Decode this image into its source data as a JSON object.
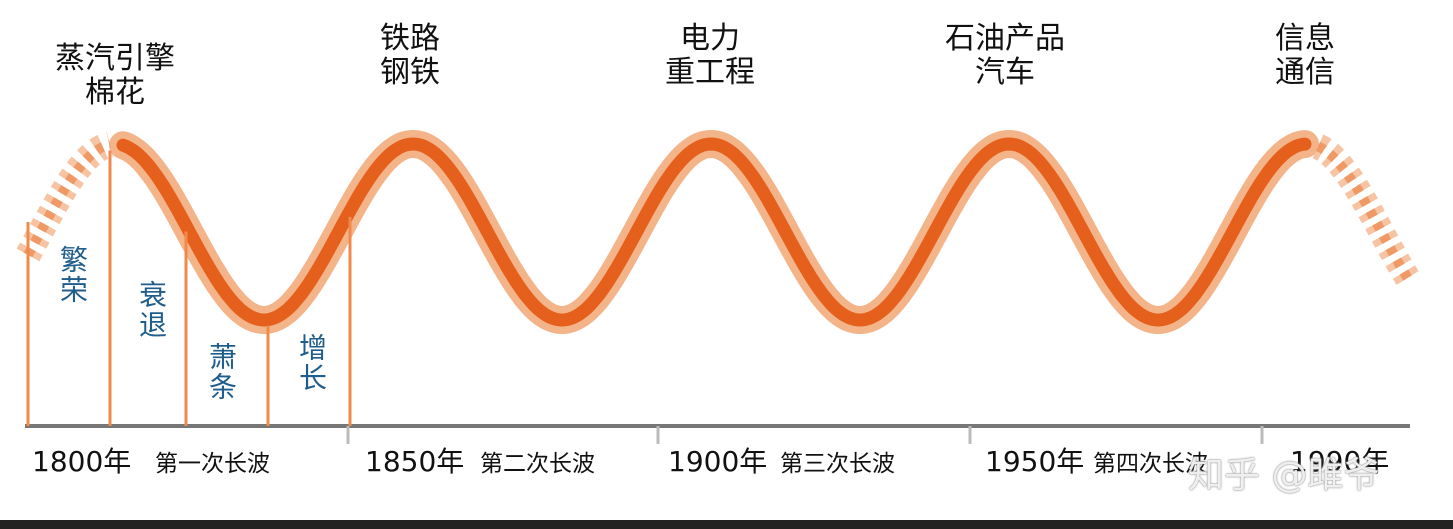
{
  "eras": [
    {
      "lines": [
        "蒸汽引擎",
        "棉花"
      ]
    },
    {
      "lines": [
        "铁路",
        "钢铁"
      ]
    },
    {
      "lines": [
        "电力",
        "重工程"
      ]
    },
    {
      "lines": [
        "石油产品",
        "汽车"
      ]
    },
    {
      "lines": [
        "信息",
        "通信"
      ]
    }
  ],
  "phases": [
    "繁荣",
    "衰退",
    "萧条",
    "增长"
  ],
  "timeline": [
    {
      "year": "1800年",
      "wave": "第一次长波"
    },
    {
      "year": "1850年",
      "wave": "第二次长波"
    },
    {
      "year": "1900年",
      "wave": "第三次长波"
    },
    {
      "year": "1950年",
      "wave": "第四次长波"
    },
    {
      "year": "1990年"
    }
  ],
  "watermark": "知乎 @雎爷"
}
